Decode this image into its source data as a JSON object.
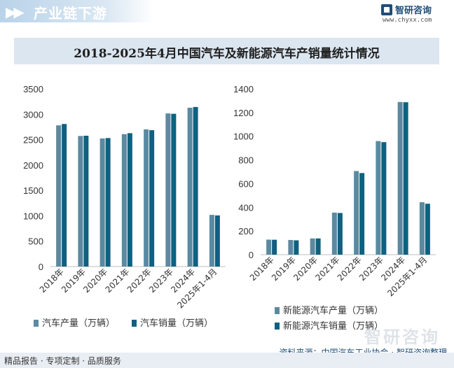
{
  "header": {
    "arrows": "▶▶",
    "title": "产业链下游"
  },
  "logo": {
    "name": "智研咨询",
    "url": "www.chyxx.com"
  },
  "title": "2018-2025年4月中国汽车及新能源汽车产销量统计情况",
  "colors": {
    "production": "#5b8aa0",
    "sales": "#0e6180",
    "axis": "#bfbfbf",
    "text": "#333333"
  },
  "chart_data": [
    {
      "type": "bar",
      "title": "",
      "categories": [
        "2018年",
        "2019年",
        "2020年",
        "2021年",
        "2022年",
        "2023年",
        "2024年",
        "2025年1-4月"
      ],
      "series": [
        {
          "name": "汽车产量（万辆）",
          "values": [
            2781,
            2572,
            2523,
            2608,
            2702,
            3016,
            3128,
            1018
          ]
        },
        {
          "name": "汽车销量（万辆）",
          "values": [
            2808,
            2577,
            2531,
            2627,
            2686,
            3009,
            3143,
            1007
          ]
        }
      ],
      "ylim": [
        0,
        3500
      ],
      "yticks": [
        0,
        500,
        1000,
        1500,
        2000,
        2500,
        3000,
        3500
      ],
      "xlabel": "",
      "ylabel": "",
      "grid": false,
      "legend": "bottom"
    },
    {
      "type": "bar",
      "title": "",
      "categories": [
        "2018年",
        "2019年",
        "2020年",
        "2021年",
        "2022年",
        "2023年",
        "2024年",
        "2025年1-4月"
      ],
      "series": [
        {
          "name": "新能源汽车产量（万辆）",
          "values": [
            127,
            124,
            137,
            355,
            706,
            959,
            1289,
            443
          ]
        },
        {
          "name": "新能源汽车销量（万辆）",
          "values": [
            126,
            121,
            137,
            352,
            689,
            950,
            1287,
            430
          ]
        }
      ],
      "ylim": [
        0,
        1400
      ],
      "yticks": [
        0,
        200,
        400,
        600,
        800,
        1000,
        1200,
        1400
      ],
      "xlabel": "",
      "ylabel": "",
      "grid": false,
      "legend": "bottom"
    }
  ],
  "footer": {
    "left": "精品报告 · 专项定制 · 品质服务",
    "source": "资料来源：中国汽车工业协会 · 智研咨询整理",
    "watermark": "智研咨询"
  }
}
